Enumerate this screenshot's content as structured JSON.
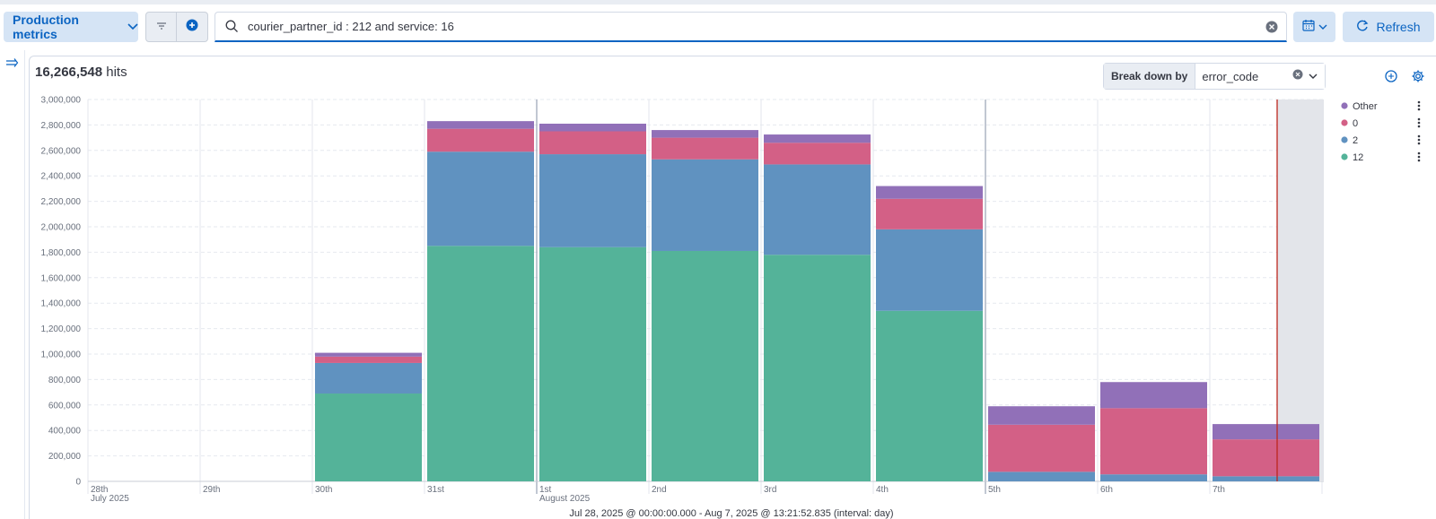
{
  "toolbar": {
    "space_label": "Production metrics",
    "query": "courier_partner_id : 212 and service: 16",
    "refresh_label": "Refresh"
  },
  "summary": {
    "hits_count": "16,266,548",
    "hits_label": "hits"
  },
  "breakdown": {
    "label": "Break down by",
    "value": "error_code"
  },
  "icons": [
    "chevron-down-icon",
    "filter-icon",
    "plus-icon",
    "search-icon",
    "clear-icon",
    "calendar-icon",
    "refresh-icon",
    "expand-icon",
    "lens-icon",
    "gear-icon",
    "more-icon"
  ],
  "colors": {
    "accent": "#0b64c2",
    "series_12": "#54b399",
    "series_2": "#6092c0",
    "series_0": "#d36086",
    "series_other": "#9170b8",
    "now_marker": "#bd271e"
  },
  "chart_data": {
    "type": "bar",
    "stacked": true,
    "categories": [
      "28th",
      "29th",
      "30th",
      "31st",
      "1st",
      "2nd",
      "3rd",
      "4th",
      "5th",
      "6th",
      "7th"
    ],
    "x_sublabels": {
      "28th": "July 2025",
      "1st": "August 2025"
    },
    "series": [
      {
        "name": "12",
        "values": [
          0,
          0,
          690000,
          1850000,
          1840000,
          1810000,
          1780000,
          1340000,
          0,
          0,
          0
        ]
      },
      {
        "name": "2",
        "values": [
          0,
          0,
          240000,
          740000,
          730000,
          720000,
          710000,
          640000,
          75000,
          55000,
          40000
        ]
      },
      {
        "name": "0",
        "values": [
          0,
          0,
          50000,
          180000,
          180000,
          170000,
          170000,
          240000,
          370000,
          520000,
          290000
        ]
      },
      {
        "name": "Other",
        "values": [
          0,
          0,
          30000,
          60000,
          60000,
          60000,
          65000,
          100000,
          145000,
          205000,
          120000
        ]
      }
    ],
    "legend_order": [
      "Other",
      "0",
      "2",
      "12"
    ],
    "ylim": [
      0,
      3000000
    ],
    "yticks": [
      "0",
      "200,000",
      "400,000",
      "600,000",
      "800,000",
      "1,000,000",
      "1,200,000",
      "1,400,000",
      "1,600,000",
      "1,800,000",
      "2,000,000",
      "2,200,000",
      "2,400,000",
      "2,600,000",
      "2,800,000",
      "3,000,000"
    ],
    "legend_placement": "top-right",
    "footer": "Jul 28, 2025 @ 00:00:00.000 - Aug 7, 2025 @ 13:21:52.835 (interval: day)"
  }
}
